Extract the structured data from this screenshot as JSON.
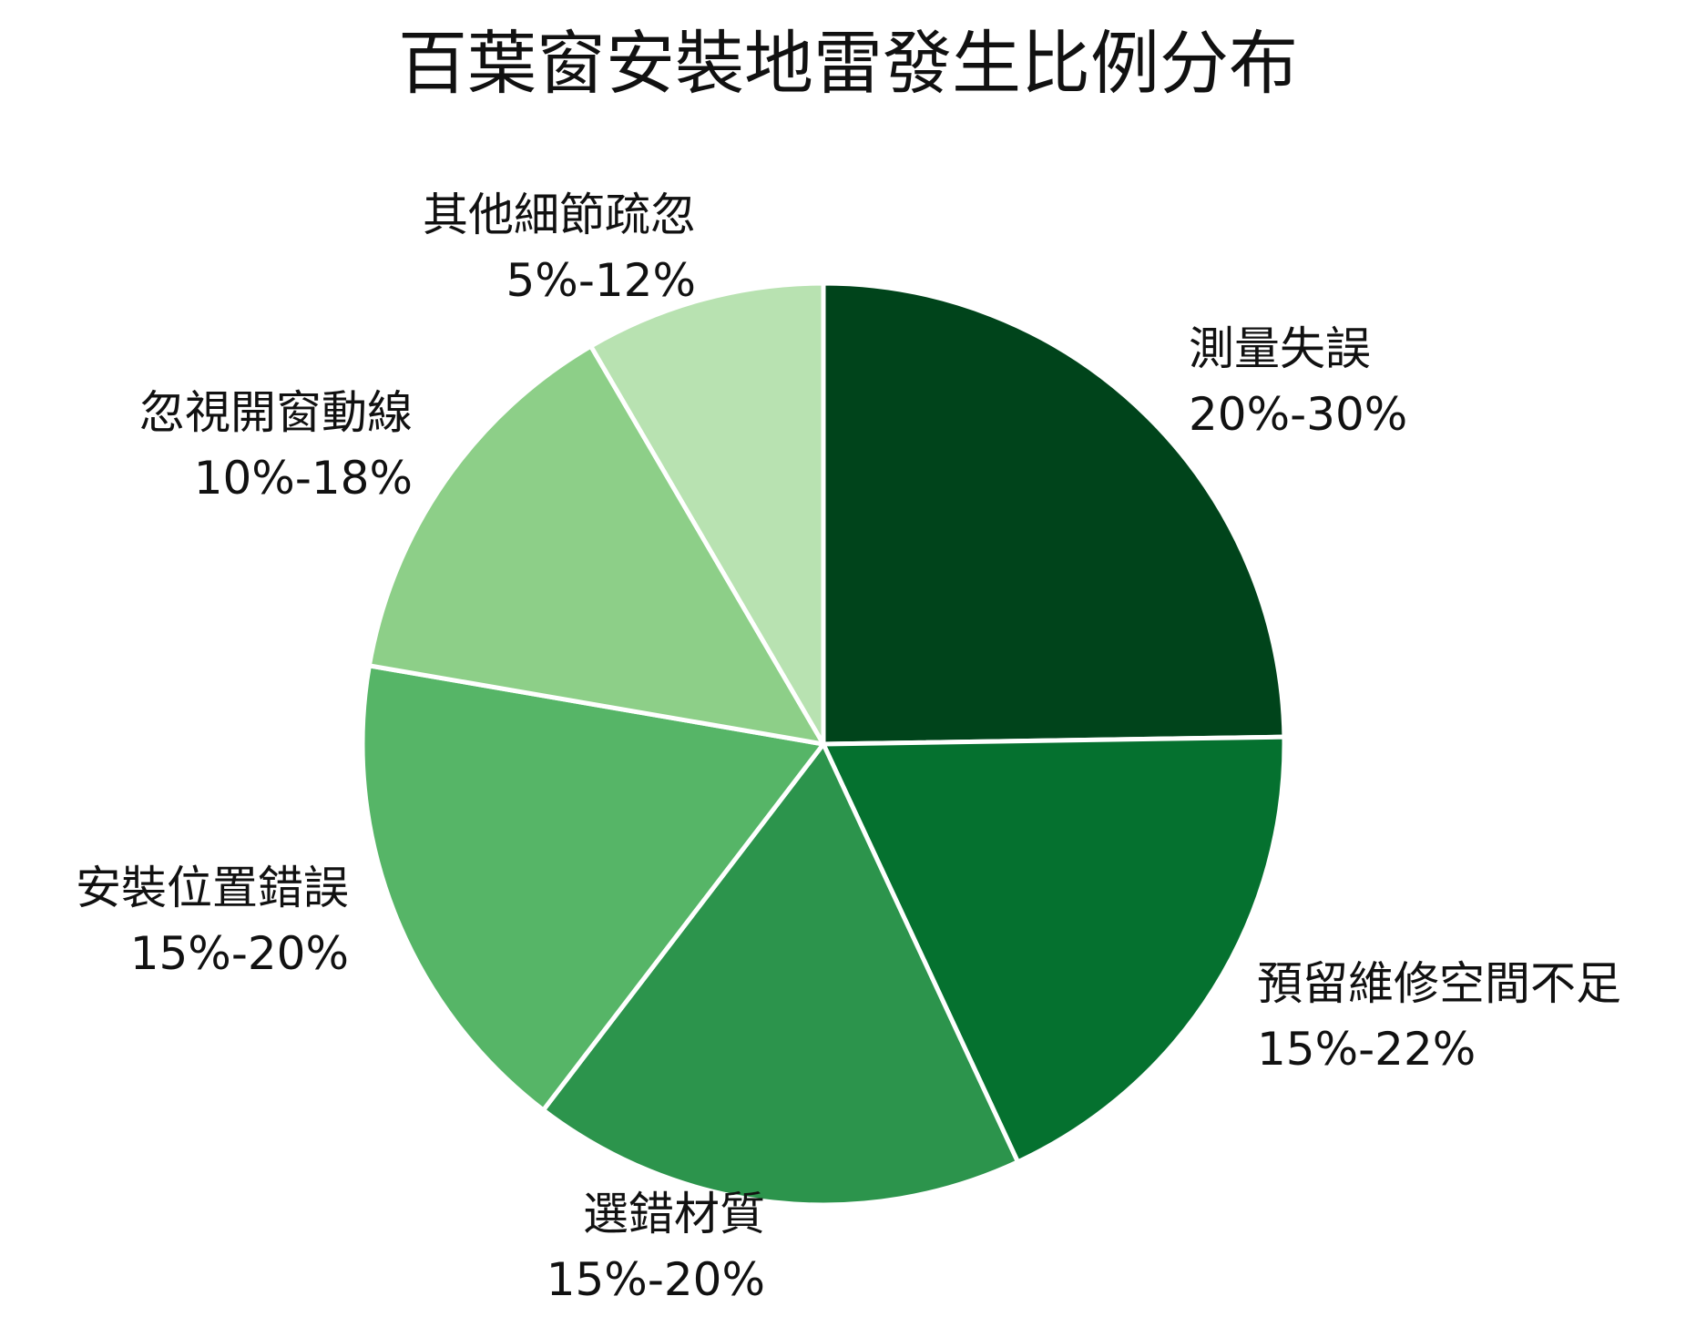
{
  "chart_data": {
    "type": "pie",
    "title": "百葉窗安裝地雷發生比例分布",
    "slices": [
      {
        "label": "測量失誤",
        "range": "20%-30%",
        "value": 25,
        "color": "#00441b"
      },
      {
        "label": "預留維修空間不足",
        "range": "15%-22%",
        "value": 18.5,
        "color": "#05712f"
      },
      {
        "label": "選錯材質",
        "range": "15%-20%",
        "value": 17.5,
        "color": "#2c944c"
      },
      {
        "label": "安裝位置錯誤",
        "range": "15%-20%",
        "value": 17.5,
        "color": "#56b567"
      },
      {
        "label": "忽視開窗動線",
        "range": "10%-18%",
        "value": 14,
        "color": "#8dcf88"
      },
      {
        "label": "其他細節疏忽",
        "range": "5%-12%",
        "value": 8.5,
        "color": "#b8e2b1"
      }
    ],
    "legend": "none",
    "start_angle": "12 o'clock",
    "direction": "clockwise"
  }
}
